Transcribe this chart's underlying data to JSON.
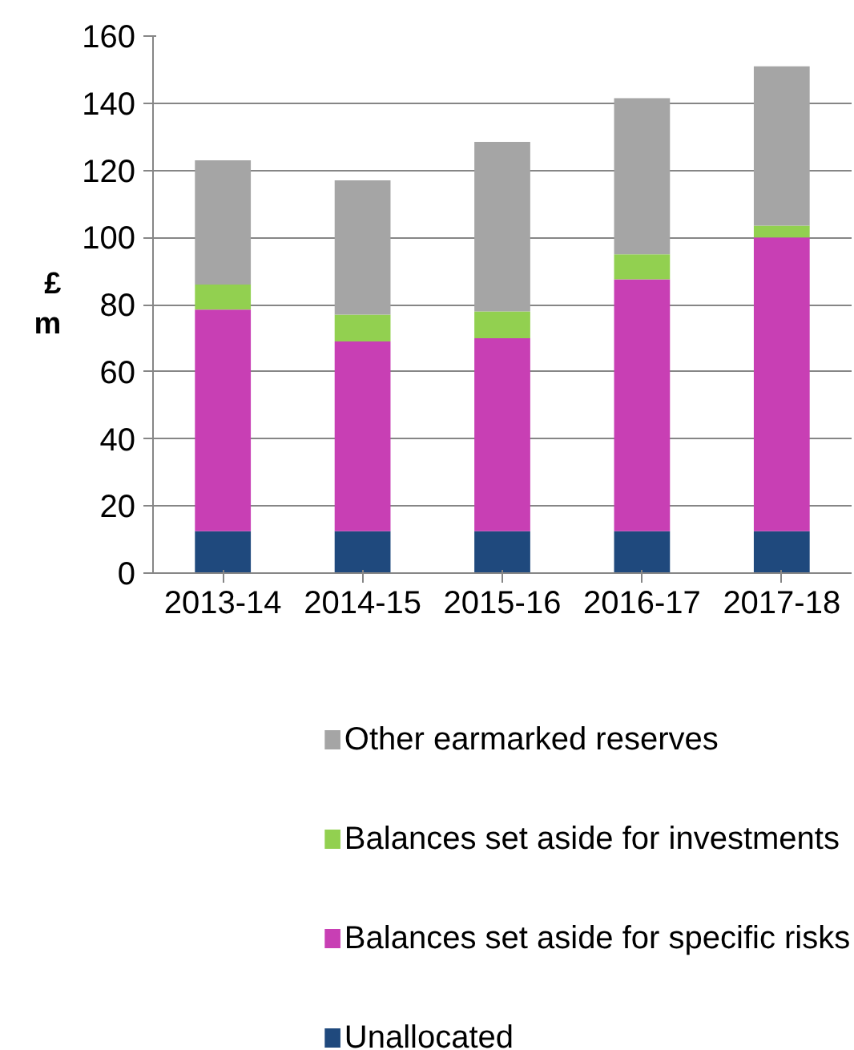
{
  "chart_data": {
    "type": "bar",
    "stacked": true,
    "ylabel": "£\nm",
    "categories": [
      "2013-14",
      "2014-15",
      "2015-16",
      "2016-17",
      "2017-18"
    ],
    "series": [
      {
        "name": "Unallocated",
        "color": "#1f497d",
        "values": [
          12.5,
          12.5,
          12.5,
          12.5,
          12.5
        ]
      },
      {
        "name": "Balances set aside for specific risks",
        "color": "#c83fb4",
        "values": [
          66,
          56.5,
          57.5,
          75,
          87.5
        ]
      },
      {
        "name": "Balances set aside for investments",
        "color": "#92d050",
        "values": [
          7.5,
          8,
          8,
          7.5,
          3.5
        ]
      },
      {
        "name": "Other earmarked reserves",
        "color": "#a5a5a5",
        "values": [
          37,
          40,
          50.5,
          46.5,
          47.5
        ]
      }
    ],
    "ylim": [
      0,
      160
    ],
    "yticks": [
      0,
      20,
      40,
      60,
      80,
      100,
      120,
      140,
      160
    ],
    "grid": "y",
    "legend": "bottom"
  }
}
